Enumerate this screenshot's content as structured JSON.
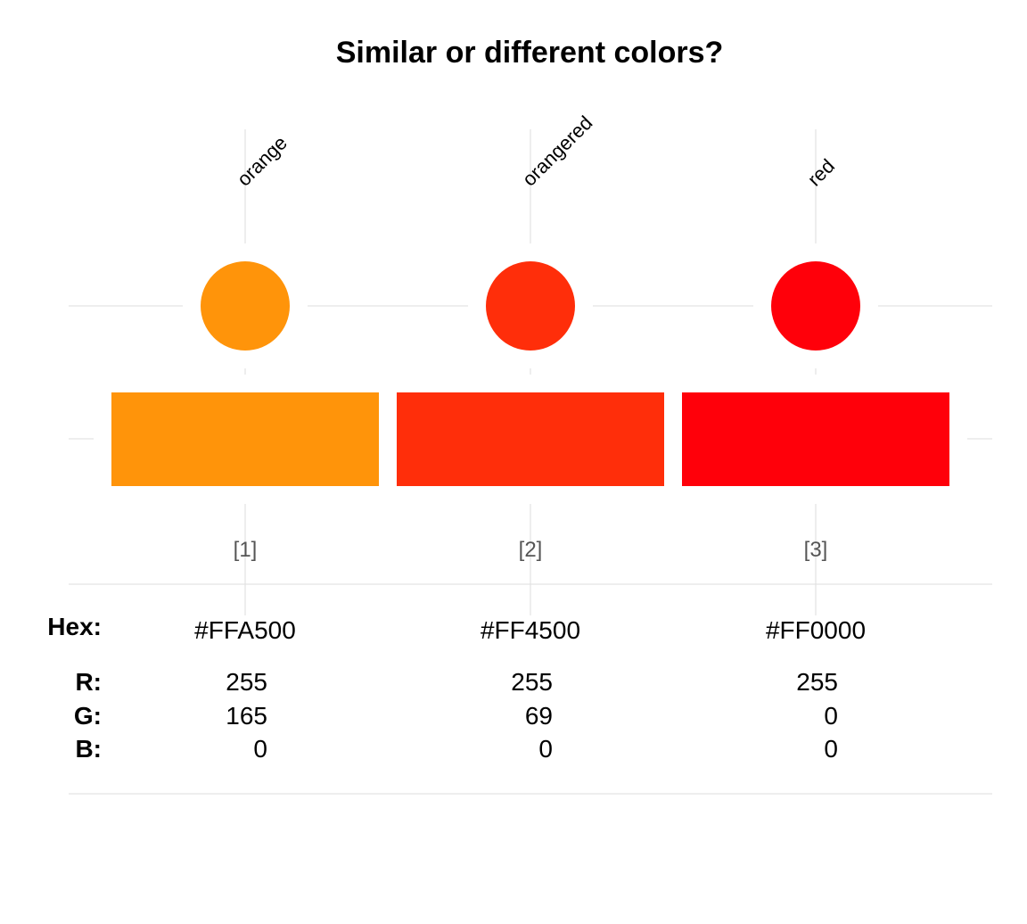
{
  "chart_data": {
    "type": "table",
    "title": "Similar or different colors?",
    "colors": [
      {
        "index": "[1]",
        "name": "orange",
        "hex": "#FFA500",
        "fill": "#FF940A",
        "r": "255",
        "g": "165",
        "b": "0"
      },
      {
        "index": "[2]",
        "name": "orangered",
        "hex": "#FF4500",
        "fill": "#FF2E0A",
        "r": "255",
        "g": "69",
        "b": "0"
      },
      {
        "index": "[3]",
        "name": "red",
        "hex": "#FF0000",
        "fill": "#FF000A",
        "r": "255",
        "g": "0",
        "b": "0"
      }
    ],
    "row_labels": {
      "hex": "Hex:",
      "r": "R:",
      "g": "G:",
      "b": "B:"
    },
    "grid": true
  }
}
